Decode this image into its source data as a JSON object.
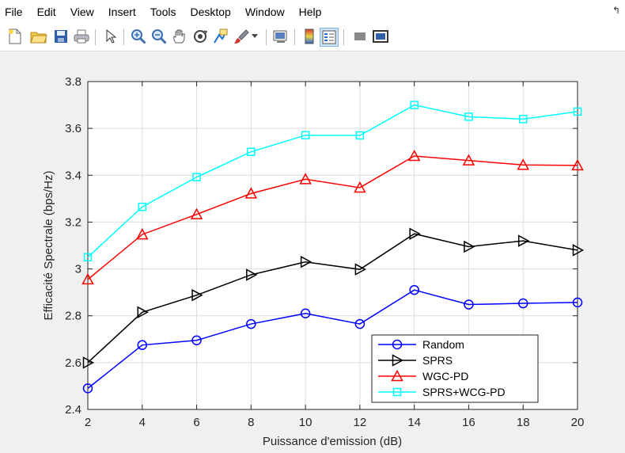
{
  "menubar": {
    "items": [
      "File",
      "Edit",
      "View",
      "Insert",
      "Tools",
      "Desktop",
      "Window",
      "Help"
    ],
    "extra": "↰"
  },
  "toolbar": {
    "icons": [
      "new-file-icon",
      "open-folder-icon",
      "save-icon",
      "print-icon",
      "pointer-icon",
      "zoom-in-icon",
      "zoom-out-icon",
      "pan-icon",
      "rotate-3d-icon",
      "data-cursor-icon",
      "brush-icon",
      "link-plot-icon",
      "colorbar-icon",
      "legend-icon",
      "hide-plot-tools-icon",
      "show-plot-tools-icon"
    ]
  },
  "colors": {
    "background": "#f0f0f0",
    "axes": "#ffffff",
    "grid": "#dcdcdc"
  },
  "chart_data": {
    "type": "line",
    "title": "",
    "xlabel": "Puissance d'emission (dB)",
    "ylabel": "Efficacité Spectrale (bps/Hz)",
    "xlim": [
      2,
      20
    ],
    "ylim": [
      2.4,
      3.8
    ],
    "xticks": [
      2,
      4,
      6,
      8,
      10,
      12,
      14,
      16,
      18,
      20
    ],
    "yticks": [
      2.4,
      2.6,
      2.8,
      3,
      3.2,
      3.4,
      3.6,
      3.8
    ],
    "yticklabels": [
      "2.4",
      "2.6",
      "2.8",
      "3",
      "3.2",
      "3.4",
      "3.6",
      "3.8"
    ],
    "grid": true,
    "legend_position": "bottom-right",
    "x": [
      2,
      4,
      6,
      8,
      10,
      12,
      14,
      16,
      18,
      20
    ],
    "series": [
      {
        "name": "Random",
        "color": "#0000ff",
        "marker": "circle",
        "values": [
          2.49,
          2.675,
          2.695,
          2.765,
          2.81,
          2.765,
          2.91,
          2.848,
          2.853,
          2.857
        ]
      },
      {
        "name": "SPRS",
        "color": "#000000",
        "marker": "triangle-right",
        "values": [
          2.6,
          2.815,
          2.888,
          2.975,
          3.03,
          2.998,
          3.15,
          3.095,
          3.12,
          3.08
        ]
      },
      {
        "name": "WGC-PD",
        "color": "#ff0000",
        "marker": "triangle-up",
        "values": [
          2.955,
          3.147,
          3.233,
          3.322,
          3.383,
          3.347,
          3.482,
          3.463,
          3.444,
          3.442
        ]
      },
      {
        "name": "SPRS+WCG-PD",
        "color": "#00ffff",
        "marker": "square",
        "values": [
          3.05,
          3.265,
          3.392,
          3.5,
          3.571,
          3.57,
          3.7,
          3.65,
          3.64,
          3.672
        ]
      }
    ]
  }
}
